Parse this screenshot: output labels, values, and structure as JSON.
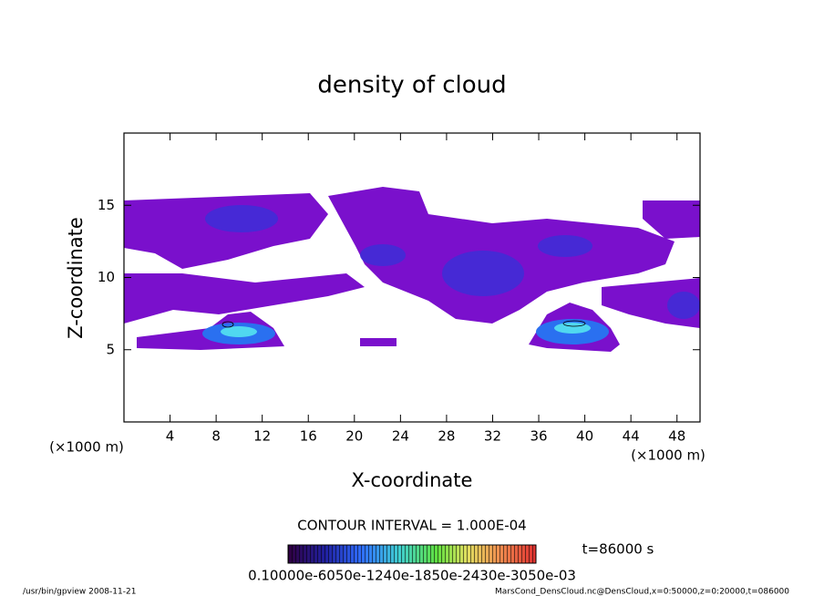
{
  "chart_data": {
    "type": "contour",
    "title": "density of cloud",
    "x_label": "X-coordinate",
    "y_label": "Z-coordinate",
    "x_unit_left": "(×1000 m)",
    "x_unit_right": "(×1000 m)",
    "xlim": [
      0,
      50
    ],
    "xticks": [
      4,
      8,
      12,
      16,
      20,
      24,
      28,
      32,
      36,
      40,
      44,
      48
    ],
    "ylim": [
      0,
      20
    ],
    "yticks": [
      5,
      10,
      15
    ],
    "contour_interval": "CONTOUR INTERVAL = 1.000E-04",
    "time_label": "t=86000 s",
    "colorbar_labels": "0.10000e-6050e-1240e-1850e-2430e-3050e-03",
    "footer_left": "/usr/bin/gpview   2008-11-21",
    "footer_right": "MarsCond_DensCloud.nc@DensCloud,x=0:50000,z=0:20000,t=086000"
  }
}
